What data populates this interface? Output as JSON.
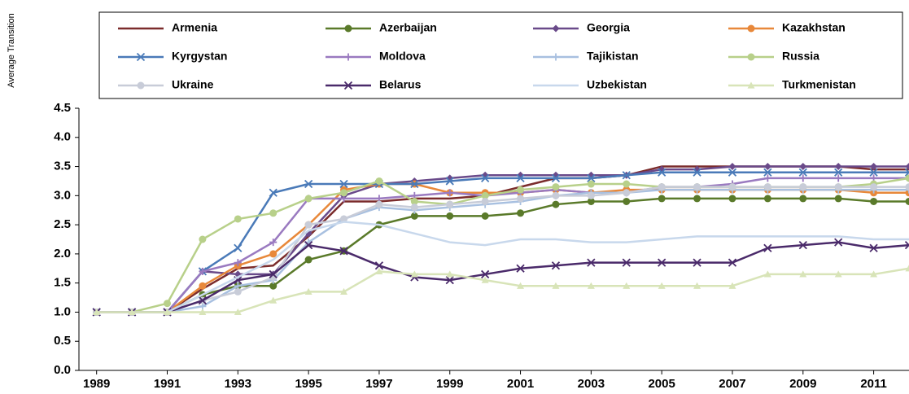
{
  "chart_data": {
    "type": "line",
    "y_axis_label": "Average Transition",
    "x": [
      1989,
      1990,
      1991,
      1992,
      1993,
      1994,
      1995,
      1996,
      1997,
      1998,
      1999,
      2000,
      2001,
      2002,
      2003,
      2004,
      2005,
      2006,
      2007,
      2008,
      2009,
      2010,
      2011,
      2012
    ],
    "xlim": [
      1988.5,
      2012
    ],
    "xticks": [
      1989,
      1991,
      1993,
      1995,
      1997,
      1999,
      2001,
      2003,
      2005,
      2007,
      2009,
      2011
    ],
    "ylim": [
      0,
      4.5
    ],
    "yticks": [
      {
        "value": 0,
        "label": "0.0"
      },
      0.5,
      {
        "value": 1,
        "label": "1.0"
      },
      1.5,
      {
        "value": 2,
        "label": "2.0"
      },
      2.5,
      {
        "value": 3,
        "label": "3.0"
      },
      3.5,
      {
        "value": 4,
        "label": "4.0"
      },
      4.5
    ],
    "grid": false,
    "legend": "top",
    "series": [
      {
        "name": "Armenia",
        "color": "#7b2c2c",
        "marker": "none",
        "values": [
          1,
          1,
          1,
          1.4,
          1.75,
          1.8,
          2.3,
          2.9,
          2.9,
          2.95,
          2.95,
          3.0,
          3.15,
          3.3,
          3.3,
          3.35,
          3.5,
          3.5,
          3.5,
          3.5,
          3.5,
          3.5,
          3.45,
          3.45
        ]
      },
      {
        "name": "Azerbaijan",
        "color": "#5a7a2a",
        "marker": "circle",
        "values": [
          1,
          1,
          1,
          1.3,
          1.45,
          1.45,
          1.9,
          2.05,
          2.5,
          2.65,
          2.65,
          2.65,
          2.7,
          2.85,
          2.9,
          2.9,
          2.95,
          2.95,
          2.95,
          2.95,
          2.95,
          2.95,
          2.9,
          2.9
        ]
      },
      {
        "name": "Georgia",
        "color": "#6a4a8a",
        "marker": "diamond",
        "values": [
          1,
          1,
          1,
          1.7,
          1.65,
          1.65,
          2.35,
          3.0,
          3.2,
          3.25,
          3.3,
          3.35,
          3.35,
          3.35,
          3.35,
          3.35,
          3.45,
          3.45,
          3.5,
          3.5,
          3.5,
          3.5,
          3.5,
          3.5
        ]
      },
      {
        "name": "Kazakhstan",
        "color": "#e8883a",
        "marker": "circle",
        "values": [
          1,
          1,
          1,
          1.45,
          1.8,
          2.0,
          2.5,
          3.1,
          3.2,
          3.2,
          3.05,
          3.05,
          3.05,
          3.1,
          3.05,
          3.1,
          3.1,
          3.1,
          3.1,
          3.1,
          3.1,
          3.1,
          3.05,
          3.05
        ]
      },
      {
        "name": "Kyrgystan",
        "color": "#4a7ab8",
        "marker": "x",
        "values": [
          1,
          1,
          1,
          1.7,
          2.1,
          3.05,
          3.2,
          3.2,
          3.2,
          3.2,
          3.25,
          3.3,
          3.3,
          3.3,
          3.3,
          3.35,
          3.4,
          3.4,
          3.4,
          3.4,
          3.4,
          3.4,
          3.4,
          3.4
        ]
      },
      {
        "name": "Moldova",
        "color": "#9a7ac0",
        "marker": "plus",
        "values": [
          1,
          1,
          1,
          1.7,
          1.85,
          2.2,
          2.95,
          2.95,
          2.95,
          3.0,
          3.05,
          3.0,
          3.05,
          3.1,
          3.05,
          3.05,
          3.15,
          3.15,
          3.2,
          3.3,
          3.3,
          3.3,
          3.3,
          3.3
        ]
      },
      {
        "name": "Tajikistan",
        "color": "#a8c0e0",
        "marker": "plus",
        "values": [
          1,
          1,
          1,
          1.1,
          1.45,
          1.55,
          2.2,
          2.6,
          2.8,
          2.75,
          2.8,
          2.85,
          2.9,
          3.0,
          3.05,
          3.05,
          3.1,
          3.1,
          3.1,
          3.1,
          3.1,
          3.1,
          3.1,
          3.1
        ]
      },
      {
        "name": "Russia",
        "color": "#b8d08a",
        "marker": "circle",
        "values": [
          1,
          1,
          1.15,
          2.25,
          2.6,
          2.7,
          2.95,
          3.05,
          3.25,
          2.9,
          2.85,
          3.0,
          3.1,
          3.15,
          3.2,
          3.2,
          3.15,
          3.15,
          3.15,
          3.15,
          3.15,
          3.15,
          3.2,
          3.3
        ]
      },
      {
        "name": "Ukraine",
        "color": "#c8ccd8",
        "marker": "circle",
        "values": [
          1,
          1,
          1,
          1.2,
          1.35,
          1.6,
          2.5,
          2.6,
          2.85,
          2.8,
          2.85,
          2.9,
          2.95,
          3.0,
          3.0,
          3.05,
          3.15,
          3.15,
          3.15,
          3.15,
          3.15,
          3.15,
          3.15,
          3.15
        ]
      },
      {
        "name": "Belarus",
        "color": "#4a2a6a",
        "marker": "x",
        "values": [
          1,
          1,
          1,
          1.2,
          1.55,
          1.65,
          2.15,
          2.05,
          1.8,
          1.6,
          1.55,
          1.65,
          1.75,
          1.8,
          1.85,
          1.85,
          1.85,
          1.85,
          1.85,
          2.1,
          2.15,
          2.2,
          2.1,
          2.15
        ]
      },
      {
        "name": "Uzbekistan",
        "color": "#c8d8ec",
        "marker": "none",
        "values": [
          1,
          1,
          1,
          1.3,
          1.6,
          1.9,
          2.4,
          2.55,
          2.5,
          2.35,
          2.2,
          2.15,
          2.25,
          2.25,
          2.2,
          2.2,
          2.25,
          2.3,
          2.3,
          2.3,
          2.3,
          2.3,
          2.25,
          2.25
        ]
      },
      {
        "name": "Turkmenistan",
        "color": "#d8e4b8",
        "marker": "triangle",
        "values": [
          1,
          1,
          1,
          1,
          1,
          1.2,
          1.35,
          1.35,
          1.7,
          1.65,
          1.65,
          1.55,
          1.45,
          1.45,
          1.45,
          1.45,
          1.45,
          1.45,
          1.45,
          1.65,
          1.65,
          1.65,
          1.65,
          1.75
        ]
      }
    ]
  }
}
